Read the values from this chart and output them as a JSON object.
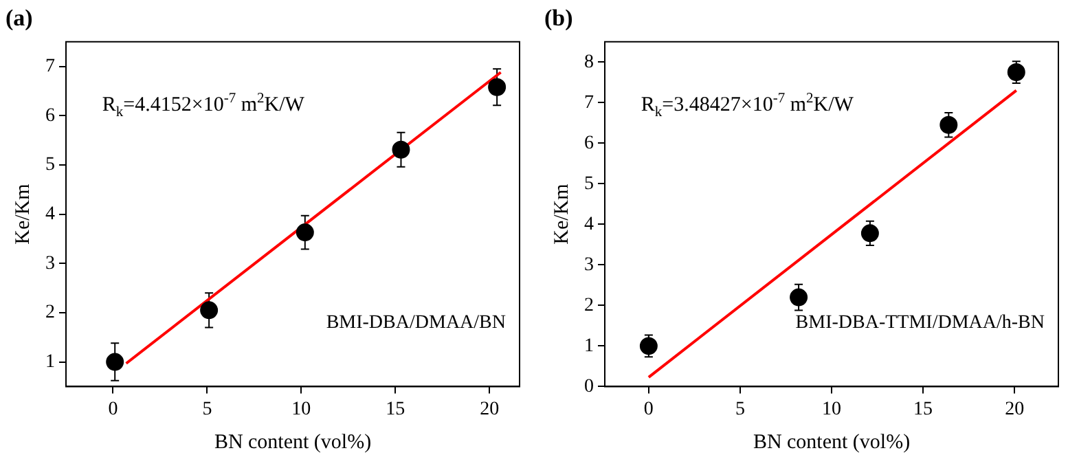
{
  "chart_data": [
    {
      "type": "scatter",
      "title": "(a)",
      "xlabel": "BN content (vol%)",
      "ylabel": "Ke/Km",
      "annotations": [
        "R$_{k}$=4.4152×10$^{-7}$ m$^{2}$K/W",
        "BMI-DBA/DMAA/BN"
      ],
      "xlim": [
        -2.5,
        21.6
      ],
      "ylim": [
        0.5,
        7.5
      ],
      "xticks": [
        0,
        5,
        10,
        15,
        20
      ],
      "yticks": [
        1,
        2,
        3,
        4,
        5,
        6,
        7
      ],
      "grid": false,
      "legend": false,
      "series": [
        {
          "type": "scatter",
          "color": "#000000",
          "marker": "circle",
          "x": [
            0.1,
            5.1,
            10.2,
            15.3,
            20.4
          ],
          "values": [
            1.0,
            2.05,
            3.63,
            5.31,
            6.58
          ],
          "errors": [
            0.38,
            0.35,
            0.34,
            0.35,
            0.37
          ]
        },
        {
          "type": "line",
          "color": "#ff0000",
          "marker": "none",
          "line_style": "solid",
          "x": [
            0.7,
            20.6
          ],
          "values": [
            0.97,
            6.88
          ]
        }
      ]
    },
    {
      "type": "scatter",
      "title": "(b)",
      "xlabel": "BN content (vol%)",
      "ylabel": "Ke/Km",
      "annotations": [
        "R$_{k}$=3.48427×10$^{-7}$ m$^{2}$K/W",
        "BMI-DBA-TTMI/DMAA/h-BN"
      ],
      "xlim": [
        -2.4,
        22.4
      ],
      "ylim": [
        0,
        8.5
      ],
      "xticks": [
        0,
        5,
        10,
        15,
        20
      ],
      "yticks": [
        0,
        1,
        2,
        3,
        4,
        5,
        6,
        7,
        8
      ],
      "grid": false,
      "legend": false,
      "series": [
        {
          "type": "scatter",
          "color": "#000000",
          "marker": "circle",
          "x": [
            0,
            8.2,
            12.1,
            16.4,
            20.1
          ],
          "values": [
            1.0,
            2.2,
            3.78,
            6.45,
            7.75
          ],
          "errors": [
            0.27,
            0.32,
            0.3,
            0.3,
            0.27
          ]
        },
        {
          "type": "line",
          "color": "#ff0000",
          "marker": "none",
          "line_style": "solid",
          "x": [
            0,
            20.1
          ],
          "values": [
            0.23,
            7.3
          ]
        }
      ]
    }
  ]
}
